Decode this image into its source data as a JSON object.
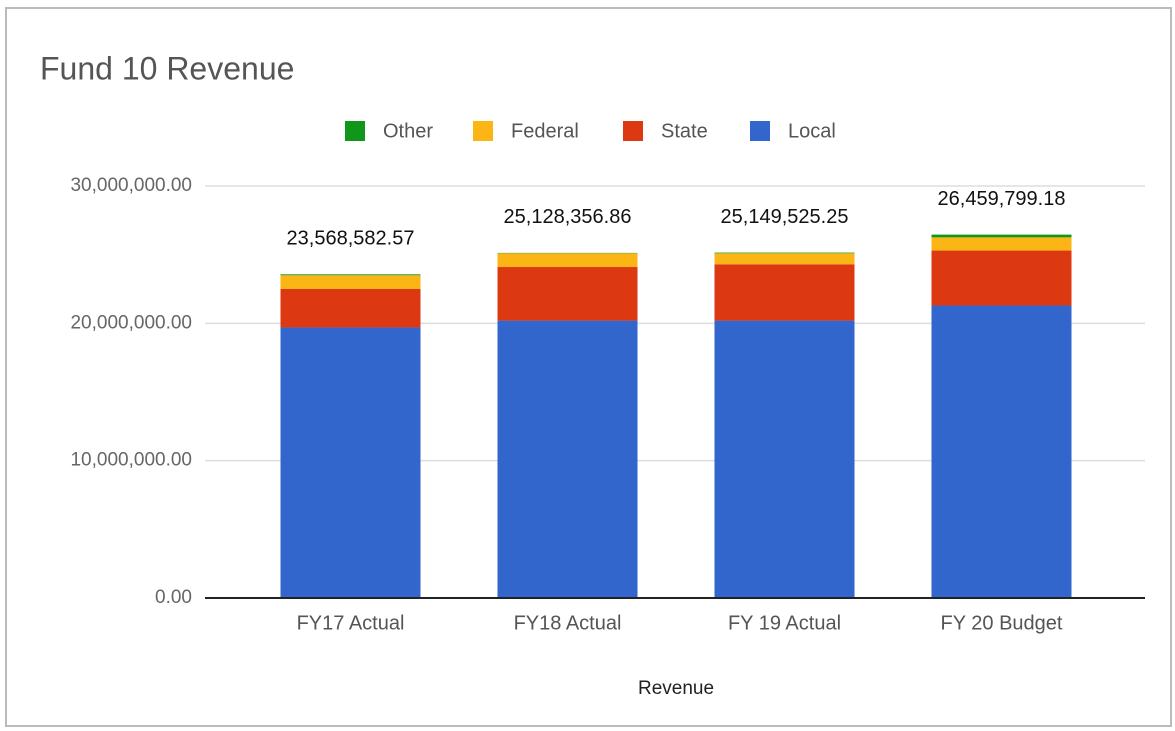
{
  "chart_data": {
    "type": "stacked_bar",
    "title": "Fund 10 Revenue",
    "x_label": "Revenue",
    "categories": [
      "FY17 Actual",
      "FY18 Actual",
      "FY 19 Actual",
      "FY 20 Budget"
    ],
    "series": [
      {
        "name": "Local",
        "color": "#3366cc",
        "values": [
          19700000,
          20200000,
          20200000,
          21300000
        ]
      },
      {
        "name": "State",
        "color": "#dc3912",
        "values": [
          2800000,
          3900000,
          4100000,
          4000000
        ]
      },
      {
        "name": "Federal",
        "color": "#fbb615",
        "values": [
          1000000,
          1000000,
          800000,
          960000
        ]
      },
      {
        "name": "Other",
        "color": "#109618",
        "values": [
          68583,
          28357,
          49525,
          199799
        ]
      }
    ],
    "totals": {
      "values": [
        23568582.57,
        25128356.86,
        25149525.25,
        26459799.18
      ],
      "value_labels": [
        "23,568,582.57",
        "25,128,356.86",
        "25,149,525.25",
        "26,459,799.18"
      ]
    },
    "ylim": [
      0,
      30000000
    ],
    "yticks": [
      {
        "value": 0,
        "label": "0.00"
      },
      {
        "value": 10000000,
        "label": "10,000,000.00"
      },
      {
        "value": 20000000,
        "label": "20,000,000.00"
      },
      {
        "value": 30000000,
        "label": "30,000,000.00"
      }
    ],
    "grid": true,
    "legend": "top"
  }
}
